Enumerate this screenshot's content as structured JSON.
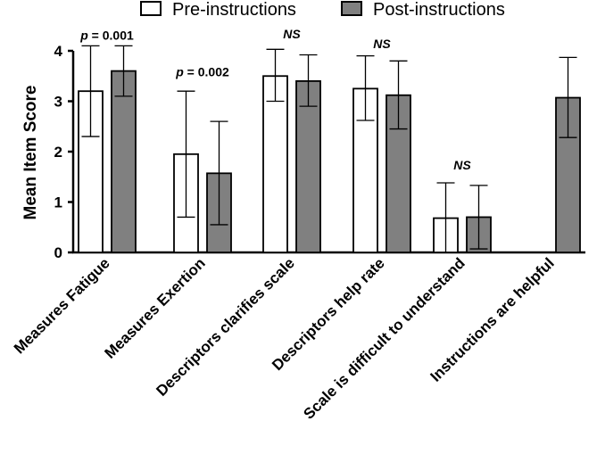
{
  "chart_data": {
    "type": "bar",
    "title": "",
    "xlabel": "",
    "ylabel": "Mean Item Score",
    "ylim": [
      0,
      4
    ],
    "yticks": [
      0,
      1,
      2,
      3,
      4
    ],
    "grid": false,
    "legend_position": "top",
    "categories": [
      "Measures Fatigue",
      "Measures Exertion",
      "Descriptors clarifies scale",
      "Descriptors help rate",
      "Scale is difficult to understand",
      "Instructions are helpful"
    ],
    "series": [
      {
        "name": "Pre-instructions",
        "color": "#ffffff",
        "values": [
          3.2,
          1.95,
          3.5,
          3.25,
          0.68,
          null
        ],
        "err_low": [
          2.3,
          0.7,
          3.0,
          2.62,
          0.0,
          null
        ],
        "err_high": [
          4.1,
          3.2,
          4.03,
          3.9,
          1.38,
          null
        ]
      },
      {
        "name": "Post-instructions",
        "color": "#808080",
        "values": [
          3.6,
          1.57,
          3.4,
          3.12,
          0.7,
          3.07
        ],
        "err_low": [
          3.1,
          0.55,
          2.9,
          2.45,
          0.07,
          2.28
        ],
        "err_high": [
          4.1,
          2.6,
          3.92,
          3.8,
          1.33,
          3.87
        ]
      }
    ],
    "annotations": [
      {
        "category_index": 0,
        "text": "= 0.001",
        "prefix": "p",
        "y": 4.22
      },
      {
        "category_index": 1,
        "text": "= 0.002",
        "prefix": "p",
        "y": 3.5
      },
      {
        "category_index": 2,
        "text": "NS",
        "prefix": "",
        "y": 4.25
      },
      {
        "category_index": 3,
        "text": "NS",
        "prefix": "",
        "y": 4.05
      },
      {
        "category_index": 4,
        "text": "NS",
        "prefix": "",
        "y": 1.65
      }
    ]
  }
}
